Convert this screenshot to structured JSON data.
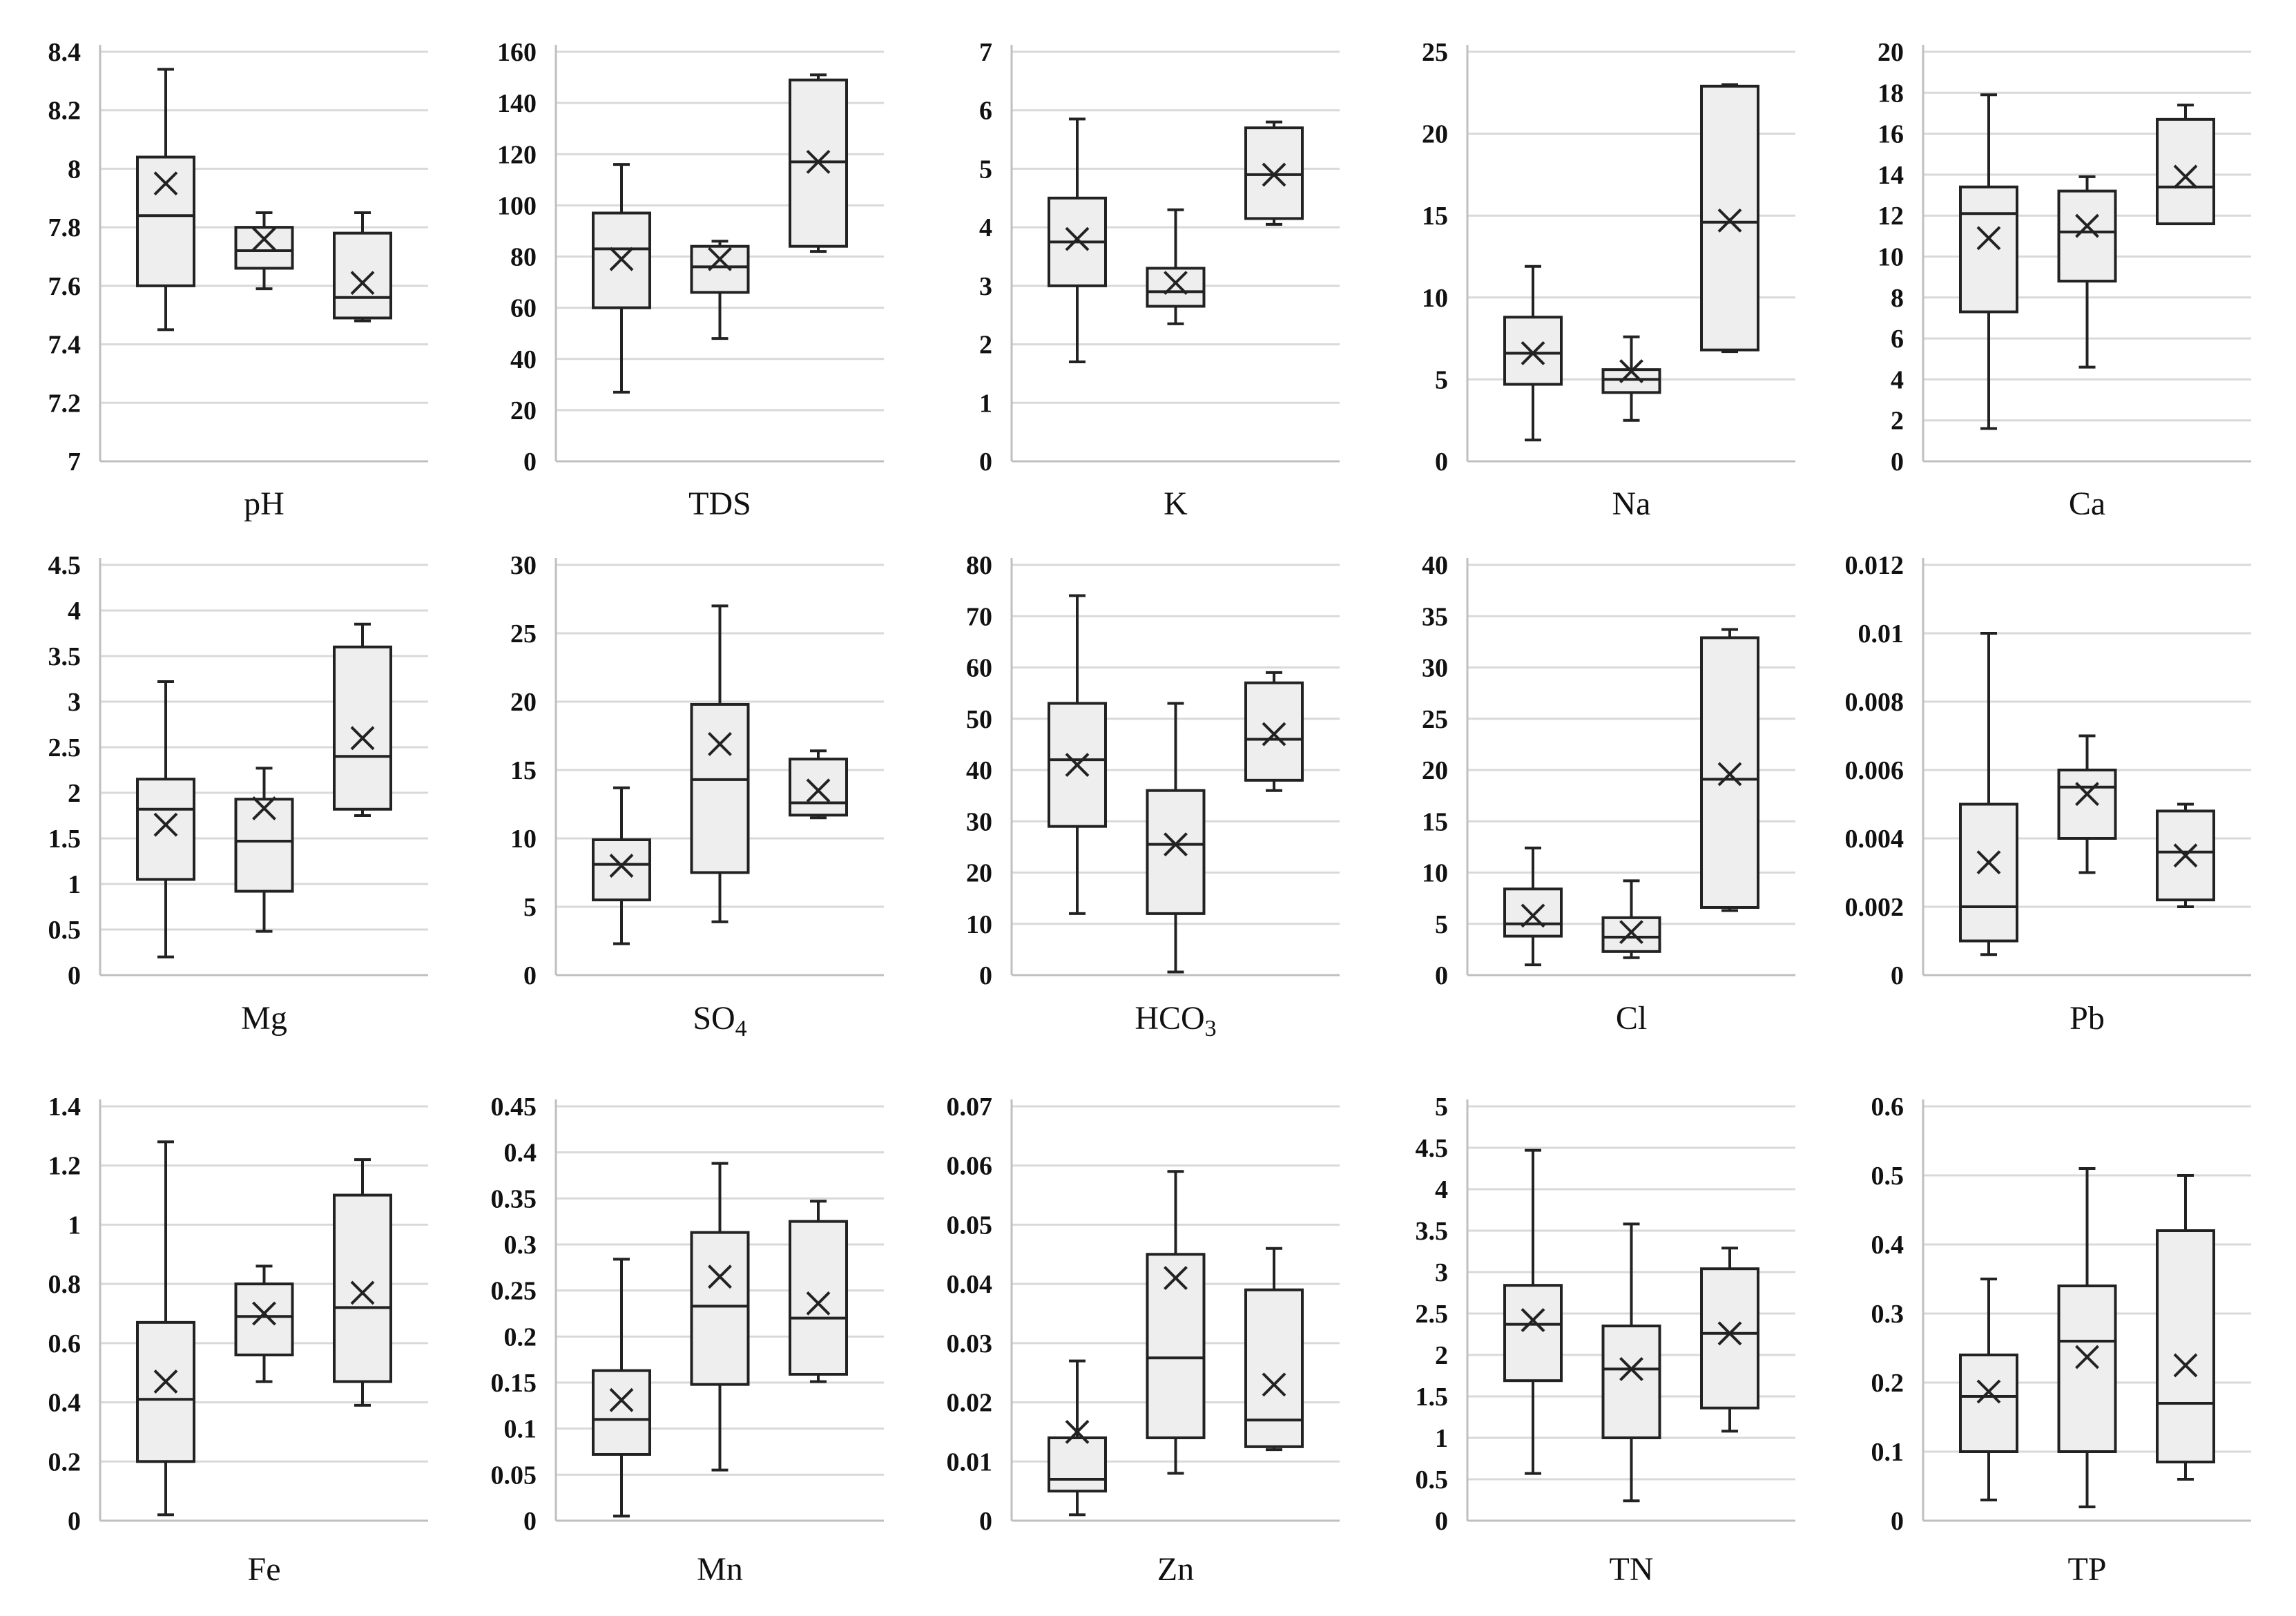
{
  "chart_data": [
    {
      "type": "box",
      "xlabel": "pH",
      "ylim": [
        7,
        8.4
      ],
      "yticks": [
        "7",
        "7.2",
        "7.4",
        "7.6",
        "7.8",
        "8",
        "8.2",
        "8.4"
      ],
      "boxes": [
        {
          "min": 7.45,
          "q1": 7.6,
          "median": 7.84,
          "q3": 8.04,
          "max": 8.34,
          "mean": 7.95
        },
        {
          "min": 7.59,
          "q1": 7.66,
          "median": 7.72,
          "q3": 7.8,
          "max": 7.85,
          "mean": 7.76
        },
        {
          "min": 7.48,
          "q1": 7.49,
          "median": 7.56,
          "q3": 7.78,
          "max": 7.85,
          "mean": 7.61
        }
      ]
    },
    {
      "type": "box",
      "xlabel": "TDS",
      "ylim": [
        0,
        160
      ],
      "yticks": [
        "0",
        "20",
        "40",
        "60",
        "80",
        "100",
        "120",
        "140",
        "160"
      ],
      "boxes": [
        {
          "min": 27,
          "q1": 60,
          "median": 83,
          "q3": 97,
          "max": 116,
          "mean": 79
        },
        {
          "min": 48,
          "q1": 66,
          "median": 76,
          "q3": 84,
          "max": 86,
          "mean": 79
        },
        {
          "min": 82,
          "q1": 84,
          "median": 117,
          "q3": 149,
          "max": 151,
          "mean": 117
        }
      ]
    },
    {
      "type": "box",
      "xlabel": "K",
      "ylim": [
        0,
        7
      ],
      "yticks": [
        "0",
        "1",
        "2",
        "3",
        "4",
        "5",
        "6",
        "7"
      ],
      "boxes": [
        {
          "min": 1.7,
          "q1": 3.0,
          "median": 3.75,
          "q3": 4.5,
          "max": 5.85,
          "mean": 3.8
        },
        {
          "min": 2.35,
          "q1": 2.65,
          "median": 2.9,
          "q3": 3.3,
          "max": 4.3,
          "mean": 3.05
        },
        {
          "min": 4.05,
          "q1": 4.15,
          "median": 4.9,
          "q3": 5.7,
          "max": 5.8,
          "mean": 4.9
        }
      ]
    },
    {
      "type": "box",
      "xlabel": "Na",
      "ylim": [
        0,
        25
      ],
      "yticks": [
        "0",
        "5",
        "10",
        "15",
        "20",
        "25"
      ],
      "boxes": [
        {
          "min": 1.3,
          "q1": 4.7,
          "median": 6.6,
          "q3": 8.8,
          "max": 11.9,
          "mean": 6.6
        },
        {
          "min": 2.5,
          "q1": 4.2,
          "median": 5.0,
          "q3": 5.6,
          "max": 7.6,
          "mean": 5.5
        },
        {
          "min": 6.7,
          "q1": 6.8,
          "median": 14.6,
          "q3": 22.9,
          "max": 23.0,
          "mean": 14.7
        }
      ]
    },
    {
      "type": "box",
      "xlabel": "Ca",
      "ylim": [
        0,
        20
      ],
      "yticks": [
        "0",
        "2",
        "4",
        "6",
        "8",
        "10",
        "12",
        "14",
        "16",
        "18",
        "20"
      ],
      "boxes": [
        {
          "min": 1.6,
          "q1": 7.3,
          "median": 12.1,
          "q3": 13.4,
          "max": 17.9,
          "mean": 10.9
        },
        {
          "min": 4.6,
          "q1": 8.8,
          "median": 11.2,
          "q3": 13.2,
          "max": 13.9,
          "mean": 11.5
        },
        {
          "min": 11.6,
          "q1": 11.6,
          "median": 13.4,
          "q3": 16.7,
          "max": 17.4,
          "mean": 13.9
        }
      ]
    },
    {
      "type": "box",
      "xlabel": "Mg",
      "ylim": [
        0,
        4.5
      ],
      "yticks": [
        "0",
        "0.5",
        "1",
        "1.5",
        "2",
        "2.5",
        "3",
        "3.5",
        "4",
        "4.5"
      ],
      "boxes": [
        {
          "min": 0.2,
          "q1": 1.05,
          "median": 1.82,
          "q3": 2.15,
          "max": 3.22,
          "mean": 1.65
        },
        {
          "min": 0.48,
          "q1": 0.92,
          "median": 1.47,
          "q3": 1.93,
          "max": 2.27,
          "mean": 1.83
        },
        {
          "min": 1.75,
          "q1": 1.82,
          "median": 2.4,
          "q3": 3.6,
          "max": 3.85,
          "mean": 2.6
        }
      ]
    },
    {
      "type": "box",
      "xlabel": "SO",
      "xlabel_sub": "4",
      "ylim": [
        0,
        30
      ],
      "yticks": [
        "0",
        "5",
        "10",
        "15",
        "20",
        "25",
        "30"
      ],
      "boxes": [
        {
          "min": 2.3,
          "q1": 5.5,
          "median": 8.1,
          "q3": 9.9,
          "max": 13.7,
          "mean": 8.0
        },
        {
          "min": 3.9,
          "q1": 7.5,
          "median": 14.3,
          "q3": 19.8,
          "max": 27.0,
          "mean": 16.9
        },
        {
          "min": 11.5,
          "q1": 11.7,
          "median": 12.6,
          "q3": 15.8,
          "max": 16.4,
          "mean": 13.5
        }
      ]
    },
    {
      "type": "box",
      "xlabel": "HCO",
      "xlabel_sub": "3",
      "ylim": [
        0,
        80
      ],
      "yticks": [
        "0",
        "10",
        "20",
        "30",
        "40",
        "50",
        "60",
        "70",
        "80"
      ],
      "boxes": [
        {
          "min": 12,
          "q1": 29,
          "median": 42,
          "q3": 53,
          "max": 74,
          "mean": 41
        },
        {
          "min": 0.6,
          "q1": 12,
          "median": 25.5,
          "q3": 36,
          "max": 53,
          "mean": 25.5
        },
        {
          "min": 36,
          "q1": 38,
          "median": 46,
          "q3": 57,
          "max": 59,
          "mean": 47
        }
      ]
    },
    {
      "type": "box",
      "xlabel": "Cl",
      "ylim": [
        0,
        40
      ],
      "yticks": [
        "0",
        "5",
        "10",
        "15",
        "20",
        "25",
        "30",
        "35",
        "40"
      ],
      "boxes": [
        {
          "min": 1.0,
          "q1": 3.8,
          "median": 5.0,
          "q3": 8.4,
          "max": 12.4,
          "mean": 5.8
        },
        {
          "min": 1.7,
          "q1": 2.3,
          "median": 3.7,
          "q3": 5.6,
          "max": 9.2,
          "mean": 4.2
        },
        {
          "min": 6.3,
          "q1": 6.6,
          "median": 19.1,
          "q3": 32.9,
          "max": 33.7,
          "mean": 19.6
        }
      ]
    },
    {
      "type": "box",
      "xlabel": "Pb",
      "ylim": [
        0,
        0.012
      ],
      "yticks": [
        "0",
        "0.002",
        "0.004",
        "0.006",
        "0.008",
        "0.01",
        "0.012"
      ],
      "boxes": [
        {
          "min": 0.0006,
          "q1": 0.001,
          "median": 0.002,
          "q3": 0.005,
          "max": 0.01,
          "mean": 0.0033
        },
        {
          "min": 0.003,
          "q1": 0.004,
          "median": 0.0055,
          "q3": 0.006,
          "max": 0.007,
          "mean": 0.0053
        },
        {
          "min": 0.002,
          "q1": 0.0022,
          "median": 0.0036,
          "q3": 0.0048,
          "max": 0.005,
          "mean": 0.0035
        }
      ]
    },
    {
      "type": "box",
      "xlabel": "Fe",
      "ylim": [
        0,
        1.4
      ],
      "yticks": [
        "0",
        "0.2",
        "0.4",
        "0.6",
        "0.8",
        "1",
        "1.2",
        "1.4"
      ],
      "boxes": [
        {
          "min": 0.02,
          "q1": 0.2,
          "median": 0.41,
          "q3": 0.67,
          "max": 1.28,
          "mean": 0.47
        },
        {
          "min": 0.47,
          "q1": 0.56,
          "median": 0.69,
          "q3": 0.8,
          "max": 0.86,
          "mean": 0.7
        },
        {
          "min": 0.39,
          "q1": 0.47,
          "median": 0.72,
          "q3": 1.1,
          "max": 1.22,
          "mean": 0.77
        }
      ]
    },
    {
      "type": "box",
      "xlabel": "Mn",
      "ylim": [
        0,
        0.45
      ],
      "yticks": [
        "0",
        "0.05",
        "0.1",
        "0.15",
        "0.2",
        "0.25",
        "0.3",
        "0.35",
        "0.4",
        "0.45"
      ],
      "boxes": [
        {
          "min": 0.005,
          "q1": 0.072,
          "median": 0.11,
          "q3": 0.163,
          "max": 0.284,
          "mean": 0.131
        },
        {
          "min": 0.055,
          "q1": 0.148,
          "median": 0.233,
          "q3": 0.313,
          "max": 0.388,
          "mean": 0.265
        },
        {
          "min": 0.151,
          "q1": 0.159,
          "median": 0.22,
          "q3": 0.325,
          "max": 0.347,
          "mean": 0.236
        }
      ]
    },
    {
      "type": "box",
      "xlabel": "Zn",
      "ylim": [
        0,
        0.07
      ],
      "yticks": [
        "0",
        "0.01",
        "0.02",
        "0.03",
        "0.04",
        "0.05",
        "0.06",
        "0.07"
      ],
      "boxes": [
        {
          "min": 0.001,
          "q1": 0.005,
          "median": 0.007,
          "q3": 0.014,
          "max": 0.027,
          "mean": 0.015
        },
        {
          "min": 0.008,
          "q1": 0.014,
          "median": 0.0275,
          "q3": 0.045,
          "max": 0.059,
          "mean": 0.041
        },
        {
          "min": 0.012,
          "q1": 0.0125,
          "median": 0.017,
          "q3": 0.039,
          "max": 0.046,
          "mean": 0.023
        }
      ]
    },
    {
      "type": "box",
      "xlabel": "TN",
      "ylim": [
        0,
        5
      ],
      "yticks": [
        "0",
        "0.5",
        "1",
        "1.5",
        "2",
        "2.5",
        "3",
        "3.5",
        "4",
        "4.5",
        "5"
      ],
      "boxes": [
        {
          "min": 0.57,
          "q1": 1.69,
          "median": 2.37,
          "q3": 2.84,
          "max": 4.47,
          "mean": 2.42
        },
        {
          "min": 0.24,
          "q1": 1.0,
          "median": 1.83,
          "q3": 2.35,
          "max": 3.58,
          "mean": 1.83
        },
        {
          "min": 1.08,
          "q1": 1.36,
          "median": 2.26,
          "q3": 3.04,
          "max": 3.29,
          "mean": 2.26
        }
      ]
    },
    {
      "type": "box",
      "xlabel": "TP",
      "ylim": [
        0,
        0.6
      ],
      "yticks": [
        "0",
        "0.1",
        "0.2",
        "0.3",
        "0.4",
        "0.5",
        "0.6"
      ],
      "boxes": [
        {
          "min": 0.03,
          "q1": 0.1,
          "median": 0.18,
          "q3": 0.24,
          "max": 0.35,
          "mean": 0.187
        },
        {
          "min": 0.02,
          "q1": 0.1,
          "median": 0.26,
          "q3": 0.34,
          "max": 0.51,
          "mean": 0.237
        },
        {
          "min": 0.06,
          "q1": 0.085,
          "median": 0.17,
          "q3": 0.42,
          "max": 0.5,
          "mean": 0.225
        }
      ]
    }
  ]
}
